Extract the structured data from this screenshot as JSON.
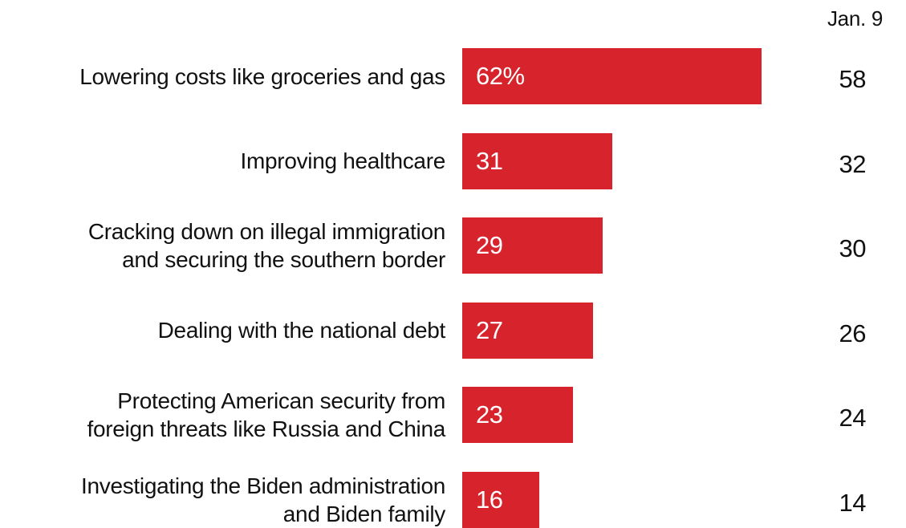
{
  "chart_data": {
    "type": "bar",
    "orientation": "horizontal",
    "categories": [
      "Lowering costs like groceries and gas",
      "Improving healthcare",
      "Cracking down on illegal immigration and securing the southern border",
      "Dealing with the national debt",
      "Protecting American security from foreign threats like Russia and China",
      "Investigating the Biden administration and Biden family"
    ],
    "category_lines": [
      [
        "Lowering costs like groceries and gas"
      ],
      [
        "Improving healthcare"
      ],
      [
        "Cracking down on illegal immigration",
        "and securing the southern border"
      ],
      [
        "Dealing with the national debt"
      ],
      [
        "Protecting American security from",
        "foreign threats like Russia and China"
      ],
      [
        "Investigating the Biden administration",
        "and Biden family"
      ]
    ],
    "values": [
      62,
      31,
      29,
      27,
      23,
      16
    ],
    "value_labels": [
      "62%",
      "31",
      "29",
      "27",
      "23",
      "16"
    ],
    "bar_color": "#d7232b",
    "comparison_column": {
      "header": "Jan. 9",
      "values": [
        "58",
        "32",
        "30",
        "26",
        "24",
        "14"
      ]
    }
  }
}
